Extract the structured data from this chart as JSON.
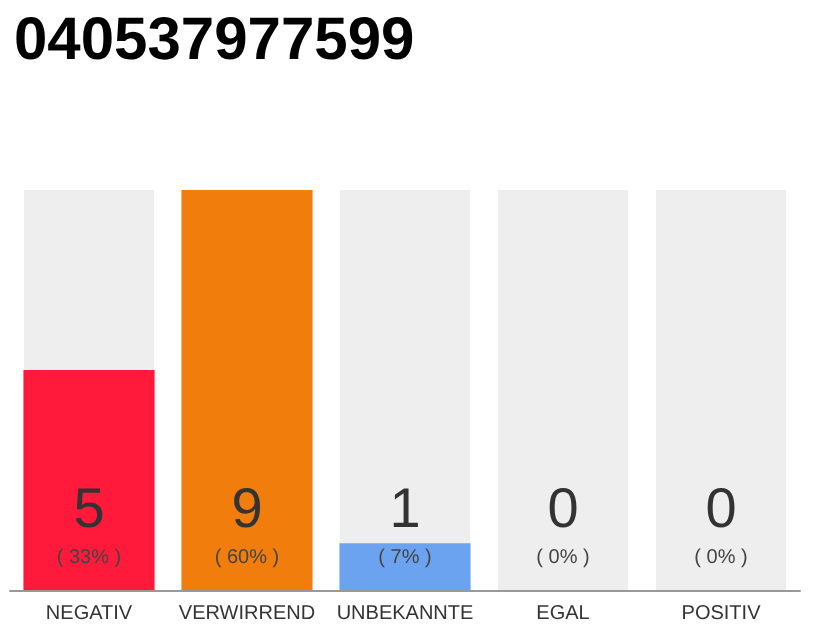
{
  "chart_data": {
    "type": "bar",
    "title": "040537977599",
    "categories": [
      "NEGATIV",
      "VERWIRREND",
      "UNBEKANNTE",
      "EGAL",
      "POSITIV"
    ],
    "values": [
      33,
      60,
      7,
      0,
      0
    ],
    "colors": [
      "#ff1a3c",
      "#f07d0c",
      "#6ca3f0",
      "#cfcfcf",
      "#cfcfcf"
    ],
    "value_labels": [
      "( 33% )",
      "( 60% )",
      "( 7% )",
      "( 0% )",
      "( 0% )"
    ],
    "annotations": [
      "5",
      "9",
      "1",
      "0",
      "0"
    ],
    "bands": [
      {
        "axis": "x",
        "from": "NEGATIV",
        "to": "NEGATIV",
        "color": "#eeeeee"
      },
      {
        "axis": "x",
        "from": "UNBEKANNTE",
        "to": "UNBEKANNTE",
        "color": "#eeeeee"
      },
      {
        "axis": "x",
        "from": "EGAL",
        "to": "EGAL",
        "color": "#eeeeee"
      },
      {
        "axis": "x",
        "from": "POSITIV",
        "to": "POSITIV",
        "color": "#eeeeee"
      }
    ]
  }
}
